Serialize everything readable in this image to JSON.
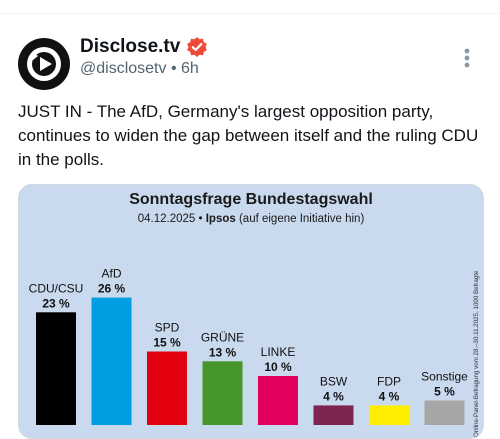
{
  "tweet": {
    "author_name": "Disclose.tv",
    "handle": "@disclosetv",
    "separator": "•",
    "time": "6h",
    "text": "JUST IN - The AfD, Germany's largest opposition party, continues to widen the gap between itself and the ruling CDU in the polls.",
    "verified_badge_color": "#ee4b3a"
  },
  "chart_data": {
    "type": "bar",
    "title": "Sonntagsfrage Bundestagswahl",
    "subtitle_date": "04.12.2025",
    "subtitle_separator": "•",
    "subtitle_source": "Ipsos",
    "subtitle_note": "(auf eigene Initiative hin)",
    "side_note": "Online-Panel-Befragung vom 28.–30.11.2025, 1000 Befragte",
    "categories": [
      "CDU/CSU",
      "AfD",
      "SPD",
      "GRÜNE",
      "LINKE",
      "BSW",
      "FDP",
      "Sonstige"
    ],
    "values": [
      23,
      26,
      15,
      13,
      10,
      4,
      4,
      5
    ],
    "value_labels": [
      "23 %",
      "26 %",
      "15 %",
      "13 %",
      "10 %",
      "4 %",
      "4 %",
      "5 %"
    ],
    "colors": [
      "#000000",
      "#009ee0",
      "#e3000f",
      "#46962b",
      "#e3005f",
      "#7d254f",
      "#ffed00",
      "#a6a6a6"
    ],
    "background": "#c9d9ee"
  }
}
